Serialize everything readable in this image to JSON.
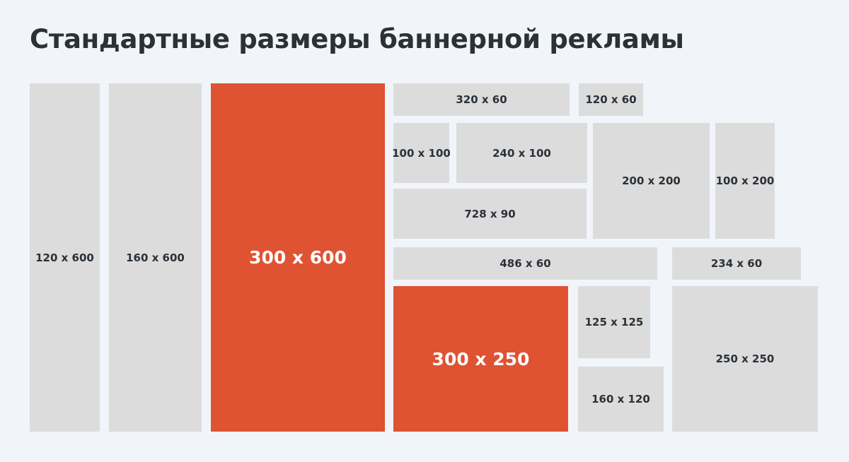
{
  "title": "Стандартные размеры баннерной рекламы",
  "colors": {
    "background": "#f1f5f9",
    "banner": "#dcdcdc",
    "accent": "#df5232",
    "text": "#2b3138"
  },
  "banners": [
    {
      "id": "120x600",
      "label": "120 x 600",
      "highlighted": false
    },
    {
      "id": "160x600",
      "label": "160 x 600",
      "highlighted": false
    },
    {
      "id": "300x600",
      "label": "300 x 600",
      "highlighted": true
    },
    {
      "id": "320x60",
      "label": "320 x 60",
      "highlighted": false
    },
    {
      "id": "120x60",
      "label": "120 x 60",
      "highlighted": false
    },
    {
      "id": "100x100",
      "label": "100 x 100",
      "highlighted": false
    },
    {
      "id": "240x100",
      "label": "240 x 100",
      "highlighted": false
    },
    {
      "id": "200x200",
      "label": "200 x 200",
      "highlighted": false
    },
    {
      "id": "100x200",
      "label": "100 x 200",
      "highlighted": false
    },
    {
      "id": "728x90",
      "label": "728 x 90",
      "highlighted": false
    },
    {
      "id": "486x60",
      "label": "486 x 60",
      "highlighted": false
    },
    {
      "id": "234x60",
      "label": "234 x 60",
      "highlighted": false
    },
    {
      "id": "300x250",
      "label": "300 x 250",
      "highlighted": true
    },
    {
      "id": "125x125",
      "label": "125 x 125",
      "highlighted": false
    },
    {
      "id": "160x120",
      "label": "160 x 120",
      "highlighted": false
    },
    {
      "id": "250x250",
      "label": "250 x 250",
      "highlighted": false
    }
  ]
}
